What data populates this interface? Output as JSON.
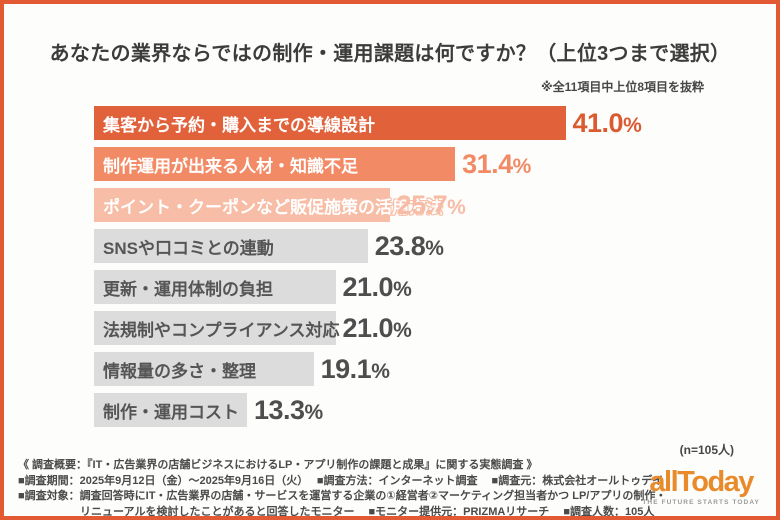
{
  "frame": {
    "border_color": "#E25A33",
    "background": "#FDFDFB"
  },
  "header": {
    "title": "あなたの業界ならではの制作・運用課題は何ですか？（上位3つまで選択）",
    "note": "※全11項目中上位8項目を抜粋"
  },
  "chart_data": {
    "type": "bar",
    "orientation": "horizontal",
    "title": "あなたの業界ならではの制作・運用課題は何ですか？（上位3つまで選択）",
    "subtitle": "※全11項目中上位8項目を抜粋",
    "sample_size_label": "(n=105人)",
    "xlim": [
      0,
      45
    ],
    "grid": false,
    "legend": false,
    "categories": [
      "集客から予約・購入までの導線設計",
      "制作運用が出来る人材・知識不足",
      "ポイント・クーポンなど販促施策の活用方法",
      "SNSや口コミとの連動",
      "更新・運用体制の負担",
      "法規制やコンプライアンス対応",
      "情報量の多さ・整理",
      "制作・運用コスト"
    ],
    "values": [
      41.0,
      31.4,
      25.7,
      23.8,
      21.0,
      21.0,
      19.1,
      13.3
    ],
    "bars": [
      {
        "label": "集客から予約・購入までの導線設計",
        "value": 41.0,
        "value_label": "41.0%",
        "bar_color": "#E1623A",
        "label_color": "#FFFFFF",
        "value_color": "#DB5B31",
        "outline": false
      },
      {
        "label": "制作運用が出来る人材・知識不足",
        "value": 31.4,
        "value_label": "31.4%",
        "bar_color": "#F28B65",
        "label_color": "#FFFFFF",
        "value_color": "#F28B65",
        "outline": false
      },
      {
        "label": "ポイント・クーポンなど販促施策の活用方法",
        "value": 25.7,
        "value_label": "25.7%",
        "bar_color": "#F8BDA6",
        "label_color": "#FFFFFF",
        "value_color": "#F7BCA5",
        "outline": true
      },
      {
        "label": "SNSや口コミとの連動",
        "value": 23.8,
        "value_label": "23.8%",
        "bar_color": "#DCDCDC",
        "label_color": "#555555",
        "value_color": "#4E4E4E",
        "outline": false
      },
      {
        "label": "更新・運用体制の負担",
        "value": 21.0,
        "value_label": "21.0%",
        "bar_color": "#DCDCDC",
        "label_color": "#555555",
        "value_color": "#4E4E4E",
        "outline": false
      },
      {
        "label": "法規制やコンプライアンス対応",
        "value": 21.0,
        "value_label": "21.0%",
        "bar_color": "#DCDCDC",
        "label_color": "#555555",
        "value_color": "#4E4E4E",
        "outline": false
      },
      {
        "label": "情報量の多さ・整理",
        "value": 19.1,
        "value_label": "19.1%",
        "bar_color": "#DCDCDC",
        "label_color": "#555555",
        "value_color": "#4E4E4E",
        "outline": false
      },
      {
        "label": "制作・運用コスト",
        "value": 13.3,
        "value_label": "13.3%",
        "bar_color": "#DCDCDC",
        "label_color": "#555555",
        "value_color": "#4E4E4E",
        "outline": false
      }
    ]
  },
  "footer": {
    "summary": "《 調査概要：『IT・広告業界の店舗ビジネスにおけるLP・アプリ制作の課題と成果』に関する実態調査 》",
    "line2": "■調査期間：2025年9月12日（金）～2025年9月16日（火）　 ■調査方法：インターネット調査　 ■調査元：株式会社オールトゥデイ",
    "line3": "■調査対象：調査回答時にIT・広告業界の店舗・サービスを運営する企業の①経営者②マーケティング担当者かつ LP/アプリの制作・",
    "line4": "リニューアルを検討したことがあると回答したモニター　 ■モニター提供元：PRIZMAリサーチ　 ■調査人数：105人"
  },
  "logo": {
    "text": "allToday",
    "tagline": "THE FUTURE STARTS TODAY",
    "color": "#E98A2B"
  }
}
